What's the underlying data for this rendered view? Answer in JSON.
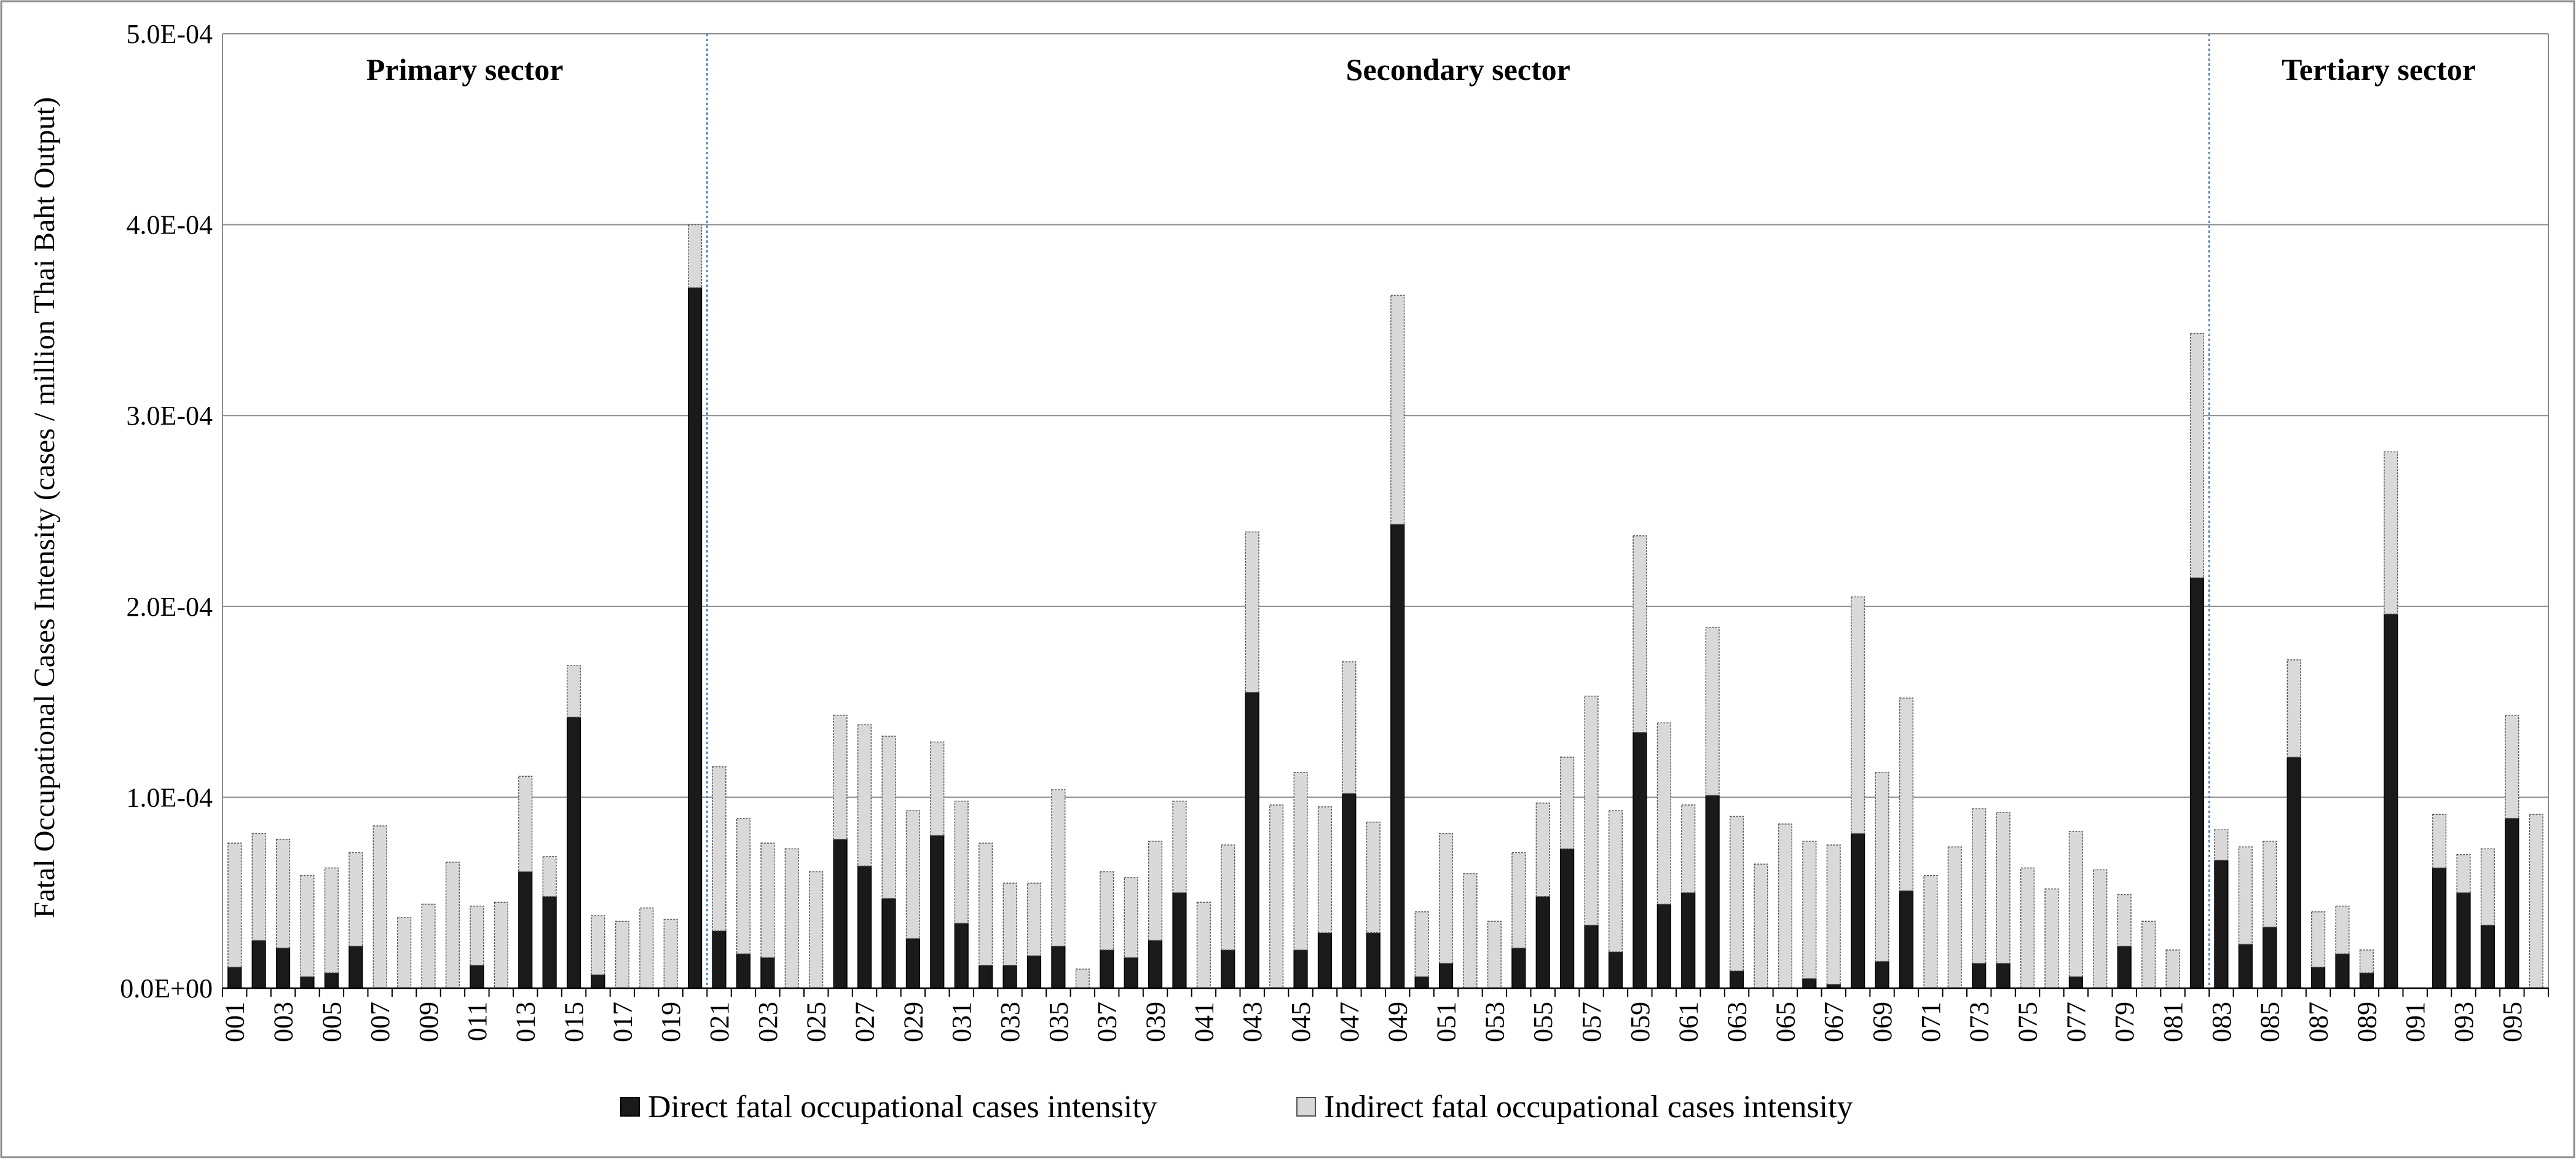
{
  "chart_data": {
    "type": "bar",
    "stacked": true,
    "xlabel": "",
    "ylabel": "Fatal Occupational Cases Intensity (cases / million Thai Baht Output)",
    "ylim": [
      0,
      0.0005
    ],
    "yticks": [
      0,
      0.0001,
      0.0002,
      0.0003,
      0.0004,
      0.0005
    ],
    "ytick_labels": [
      "0.0E+00",
      "1.0E-04",
      "2.0E-04",
      "3.0E-04",
      "4.0E-04",
      "5.0E-04"
    ],
    "grid": "horizontal",
    "legend_position": "bottom",
    "colors": {
      "direct": "#1a1a1a",
      "indirect": "#d9d9d9"
    },
    "x_label_step": 2,
    "categories": [
      "001",
      "002",
      "003",
      "004",
      "005",
      "006",
      "007",
      "008",
      "009",
      "010",
      "011",
      "012",
      "013",
      "014",
      "015",
      "016",
      "017",
      "018",
      "019",
      "020",
      "021",
      "022",
      "023",
      "024",
      "025",
      "026",
      "027",
      "028",
      "029",
      "030",
      "031",
      "032",
      "033",
      "034",
      "035",
      "036",
      "037",
      "038",
      "039",
      "040",
      "041",
      "042",
      "043",
      "044",
      "045",
      "046",
      "047",
      "048",
      "049",
      "050",
      "051",
      "052",
      "053",
      "054",
      "055",
      "056",
      "057",
      "058",
      "059",
      "060",
      "061",
      "062",
      "063",
      "064",
      "065",
      "066",
      "067",
      "068",
      "069",
      "070",
      "071",
      "072",
      "073",
      "074",
      "075",
      "076",
      "077",
      "078",
      "079",
      "080",
      "081",
      "082",
      "083",
      "084",
      "085",
      "086",
      "087",
      "088",
      "089",
      "090",
      "091",
      "092",
      "093",
      "094",
      "095",
      "096"
    ],
    "sectors": [
      {
        "name": "Primary sector",
        "first": "001",
        "last": "020"
      },
      {
        "name": "Secondary sector",
        "first": "021",
        "last": "082"
      },
      {
        "name": "Tertiary sector",
        "first": "083",
        "last": "096"
      }
    ],
    "series": [
      {
        "name": "Direct fatal occupational cases intensity",
        "values": [
          1.1e-05,
          2.5e-05,
          2.1e-05,
          6e-06,
          8e-06,
          2.2e-05,
          0,
          0,
          0,
          0,
          1.2e-05,
          0,
          6.1e-05,
          4.8e-05,
          0.000142,
          7e-06,
          0,
          0,
          0,
          0.000367,
          3e-05,
          1.8e-05,
          1.6e-05,
          0,
          0,
          7.8e-05,
          6.4e-05,
          4.7e-05,
          2.6e-05,
          8e-05,
          3.4e-05,
          1.2e-05,
          1.2e-05,
          1.7e-05,
          2.2e-05,
          0,
          2e-05,
          1.6e-05,
          2.5e-05,
          5e-05,
          0,
          2e-05,
          0.000155,
          0,
          2e-05,
          2.9e-05,
          0.000102,
          2.9e-05,
          0.000243,
          6e-06,
          1.3e-05,
          0,
          0,
          2.1e-05,
          4.8e-05,
          7.3e-05,
          3.3e-05,
          1.9e-05,
          0.000134,
          4.4e-05,
          5e-05,
          0.000101,
          9e-06,
          0,
          0,
          5e-06,
          2e-06,
          8.1e-05,
          1.4e-05,
          5.1e-05,
          0,
          0,
          1.3e-05,
          1.3e-05,
          0,
          0,
          6e-06,
          0,
          2.2e-05,
          0,
          0,
          0.000215,
          6.7e-05,
          2.3e-05,
          3.2e-05,
          0.000121,
          1.1e-05,
          1.8e-05,
          8e-06,
          0.000196,
          0,
          6.3e-05,
          5e-05,
          3.3e-05,
          8.9e-05,
          0
        ]
      },
      {
        "name": "Indirect fatal occupational cases intensity",
        "values": [
          6.5e-05,
          5.6e-05,
          5.7e-05,
          5.3e-05,
          5.5e-05,
          4.9e-05,
          8.5e-05,
          3.7e-05,
          4.4e-05,
          6.6e-05,
          3.1e-05,
          4.5e-05,
          5e-05,
          2.1e-05,
          2.7e-05,
          3.1e-05,
          3.5e-05,
          4.2e-05,
          3.6e-05,
          3.3e-05,
          8.6e-05,
          7.1e-05,
          6e-05,
          7.3e-05,
          6.1e-05,
          6.5e-05,
          7.4e-05,
          8.5e-05,
          6.7e-05,
          4.9e-05,
          6.4e-05,
          6.4e-05,
          4.3e-05,
          3.8e-05,
          8.2e-05,
          1e-05,
          4.1e-05,
          4.2e-05,
          5.2e-05,
          4.8e-05,
          4.5e-05,
          5.5e-05,
          8.4e-05,
          9.6e-05,
          9.3e-05,
          6.6e-05,
          6.9e-05,
          5.8e-05,
          0.00012,
          3.4e-05,
          6.8e-05,
          6e-05,
          3.5e-05,
          5e-05,
          4.9e-05,
          4.8e-05,
          0.00012,
          7.4e-05,
          0.000103,
          9.5e-05,
          4.6e-05,
          8.8e-05,
          8.1e-05,
          6.5e-05,
          8.6e-05,
          7.2e-05,
          7.3e-05,
          0.000124,
          9.9e-05,
          0.000101,
          5.9e-05,
          7.4e-05,
          8.1e-05,
          7.9e-05,
          6.3e-05,
          5.2e-05,
          7.6e-05,
          6.2e-05,
          2.7e-05,
          3.5e-05,
          2e-05,
          0.000128,
          1.6e-05,
          5.1e-05,
          4.5e-05,
          5.1e-05,
          2.9e-05,
          2.5e-05,
          1.2e-05,
          8.5e-05,
          0,
          2.8e-05,
          2e-05,
          4e-05,
          5.4e-05,
          9.1e-05
        ]
      }
    ]
  }
}
